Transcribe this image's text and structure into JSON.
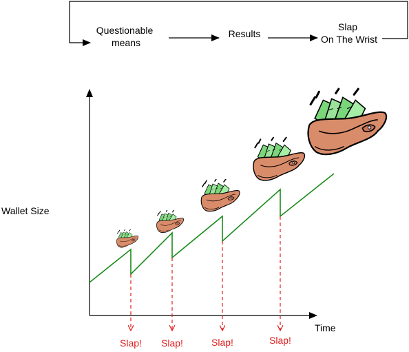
{
  "flow": {
    "step1": [
      "Questionable",
      "means"
    ],
    "step2": "Results",
    "step3": [
      "Slap",
      "On The Wrist"
    ]
  },
  "axes": {
    "y_label": "Wallet Size",
    "x_label": "Time"
  },
  "slaps": [
    "Slap!",
    "Slap!",
    "Slap!",
    "Slap!"
  ],
  "colors": {
    "line": "#1a8a1a",
    "slap": "#e02020",
    "wallet": "#d98c6a",
    "money": "#79d679"
  }
}
